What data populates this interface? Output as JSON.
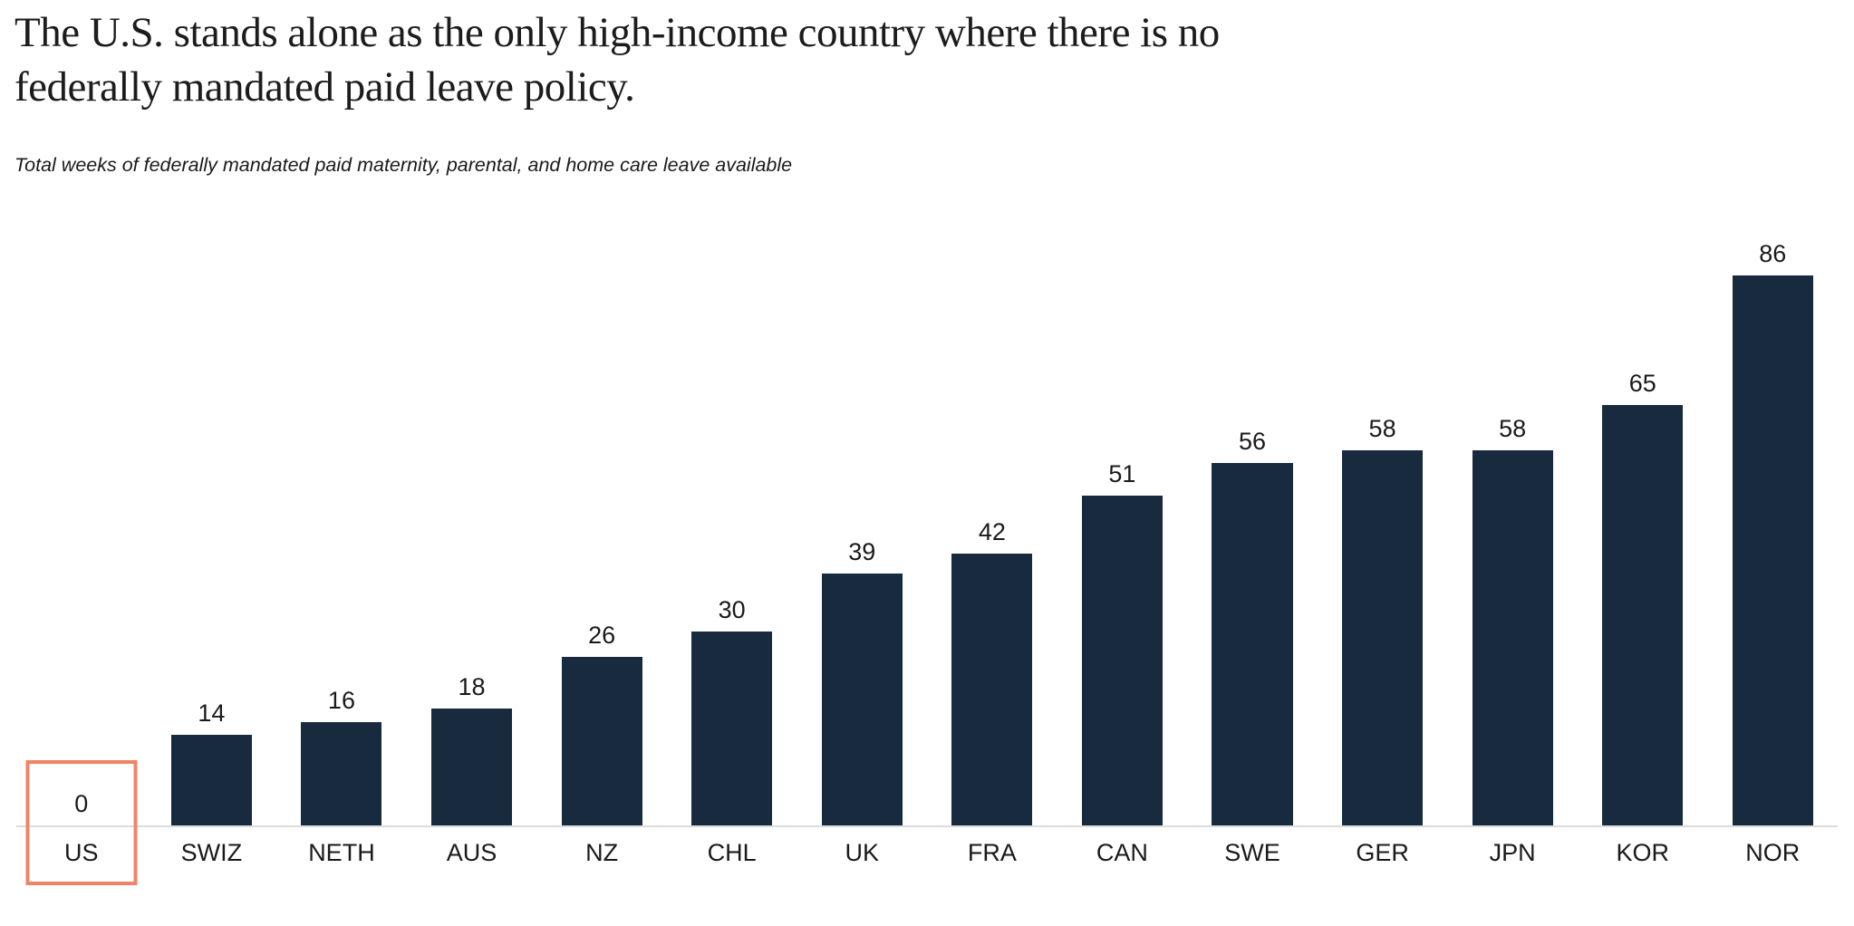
{
  "header": {
    "title": "The U.S. stands alone as the only high-income country where there is no federally mandated paid leave policy.",
    "subtitle": "Total weeks of federally mandated paid maternity, parental, and home care leave available"
  },
  "chart_data": {
    "type": "bar",
    "title": "The U.S. stands alone as the only high-income country where there is no federally mandated paid leave policy.",
    "subtitle": "Total weeks of federally mandated paid maternity, parental, and home care leave available",
    "categories": [
      "US",
      "SWIZ",
      "NETH",
      "AUS",
      "NZ",
      "CHL",
      "UK",
      "FRA",
      "CAN",
      "SWE",
      "GER",
      "JPN",
      "KOR",
      "NOR"
    ],
    "values": [
      0,
      14,
      16,
      18,
      26,
      30,
      39,
      42,
      51,
      56,
      58,
      58,
      65,
      86
    ],
    "xlabel": "",
    "ylabel": "",
    "ylim": [
      0,
      90
    ],
    "grid": false,
    "legend": "none",
    "value_labels_shown": true,
    "axis_style": "x-baseline-only",
    "bar_color": "#172A3E",
    "baseline_color": "#dcdcdc",
    "label_color": "#1a1a1a",
    "highlight": {
      "category": "US",
      "value": 0,
      "style": "outlined-box",
      "outline_color": "#EF8566"
    }
  }
}
